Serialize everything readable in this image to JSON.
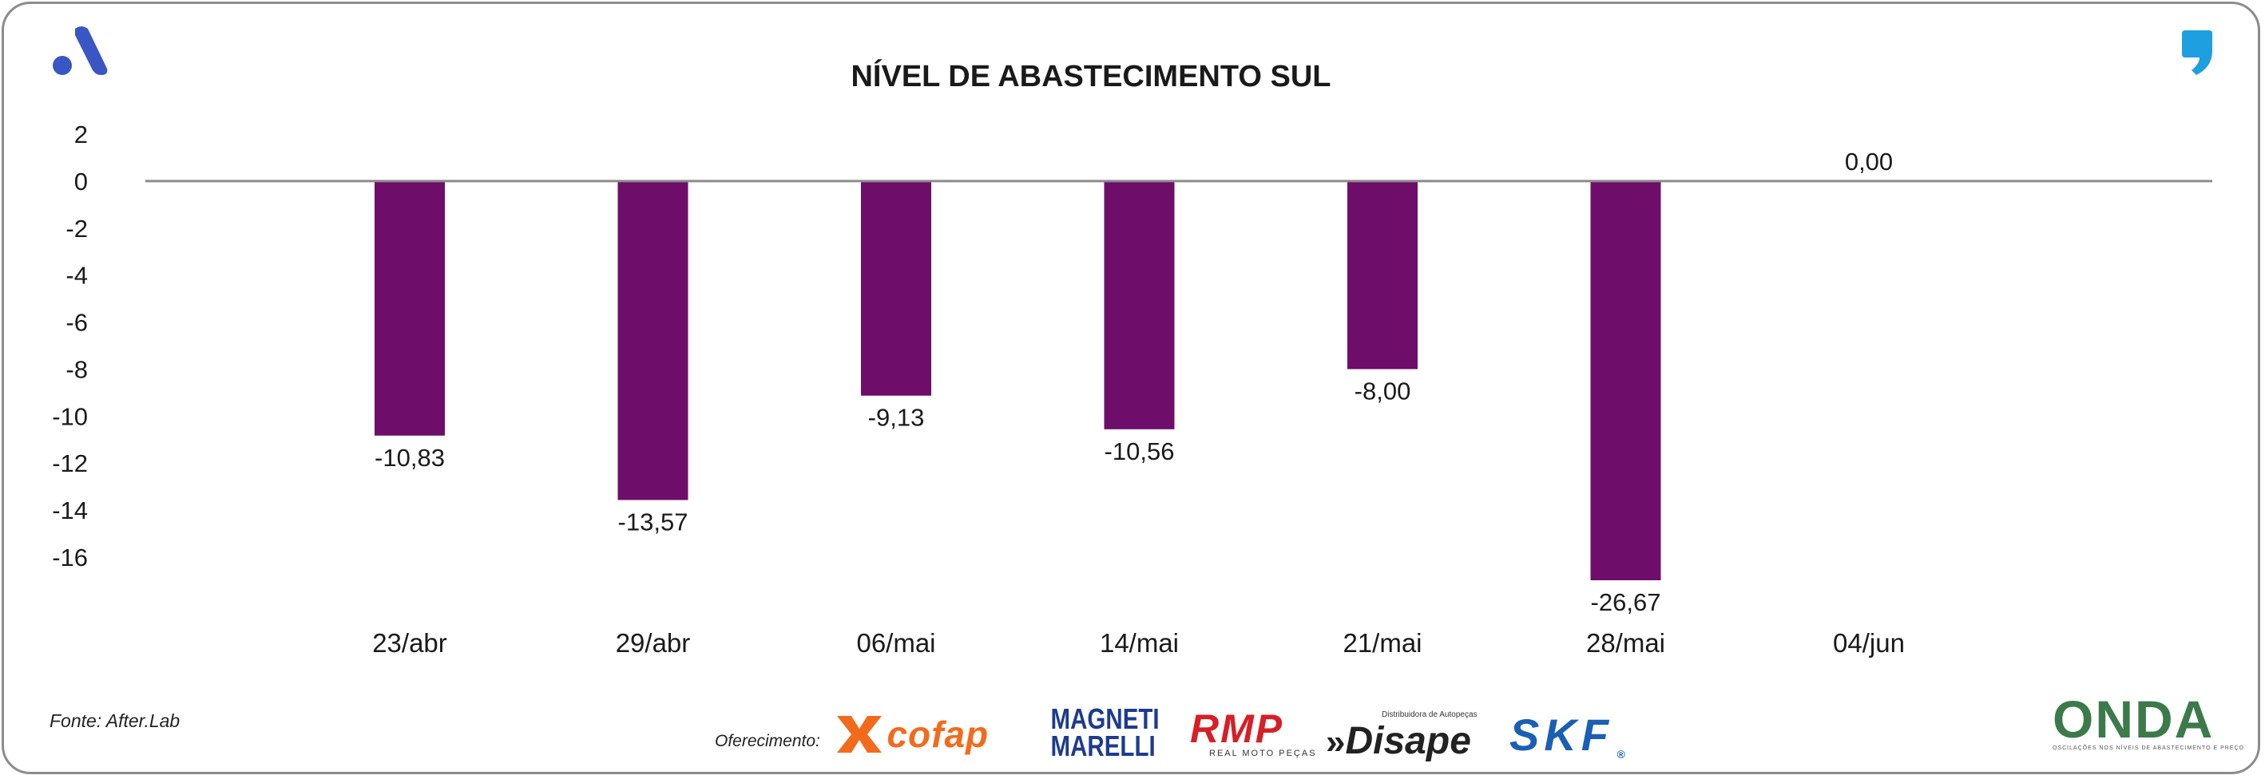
{
  "chart_data": {
    "type": "bar",
    "title": "NÍVEL DE ABASTECIMENTO SUL",
    "categories": [
      "23/abr",
      "29/abr",
      "06/mai",
      "14/mai",
      "21/mai",
      "28/mai",
      "04/jun"
    ],
    "values": [
      -10.83,
      -13.57,
      -9.13,
      -10.56,
      -8.0,
      -26.67,
      0.0
    ],
    "value_labels": [
      "-10,83",
      "-13,57",
      "-9,13",
      "-10,56",
      "-8,00",
      "-26,67",
      "0,00"
    ],
    "yticks": [
      2,
      0,
      -2,
      -4,
      -6,
      -8,
      -10,
      -12,
      -14,
      -16
    ],
    "ylim": [
      -16,
      2
    ],
    "xlabel": "",
    "ylabel": "",
    "grid": false,
    "bar_color": "#6e0d6a"
  },
  "footer": {
    "source": "Fonte: After.Lab",
    "sponsor_label": "Oferecimento:",
    "sponsors": {
      "cofap": "cofap",
      "magneti_line1": "MAGNETI",
      "magneti_line2": "MARELLI",
      "rmp": "RMP",
      "rmp_sub": "REAL MOTO PEÇAS",
      "disape_pre": "»",
      "disape": "Disape",
      "disape_sub": "Distribuidora de Autopeças",
      "skf": "SKF"
    },
    "onda": "ONDA",
    "onda_sub": "OSCILAÇÕES NOS NÍVEIS DE ABASTECIMENTO E PREÇO"
  },
  "colors": {
    "brand_blue": "#3a56c5",
    "quote_blue": "#1e9fe0",
    "cofap_orange": "#f26b1d",
    "magneti_blue": "#1d3b8f",
    "rmp_red": "#d61f26",
    "skf_blue": "#1a5fb4",
    "axis_gray": "#8c8c8c"
  }
}
